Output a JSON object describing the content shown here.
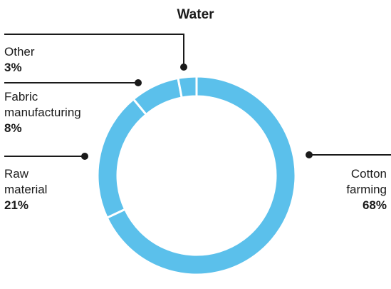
{
  "chart_data": {
    "type": "pie",
    "title": "Water",
    "slices": [
      {
        "label": "Cotton farming",
        "label_lines": [
          "Cotton",
          "farming"
        ],
        "value": 68,
        "display": "68%"
      },
      {
        "label": "Raw material",
        "label_lines": [
          "Raw",
          "material"
        ],
        "value": 21,
        "display": "21%"
      },
      {
        "label": "Fabric manufacturing",
        "label_lines": [
          "Fabric",
          "manufacturing"
        ],
        "value": 8,
        "display": "8%"
      },
      {
        "label": "Other",
        "label_lines": [
          "Other"
        ],
        "value": 3,
        "display": "3%"
      }
    ],
    "donut": true,
    "color": "#5bc0eb",
    "line_color": "#1a1a1a"
  }
}
